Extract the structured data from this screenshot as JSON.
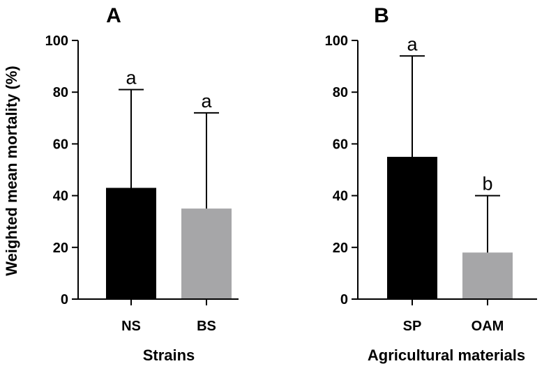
{
  "ylabel": "Weighted mean mortality (%)",
  "chart_data": [
    {
      "type": "bar",
      "panel": "A",
      "categories": [
        "NS",
        "BS"
      ],
      "values": [
        43,
        35
      ],
      "error_upper": [
        81,
        72
      ],
      "significance": [
        "a",
        "a"
      ],
      "colors": [
        "#000000",
        "#a6a6a8"
      ],
      "xlabel": "Strains",
      "ylabel": "Weighted mean mortality (%)",
      "ylim": [
        0,
        100
      ],
      "yticks": [
        0,
        20,
        40,
        60,
        80,
        100
      ],
      "grid": false
    },
    {
      "type": "bar",
      "panel": "B",
      "categories": [
        "SP",
        "OAM"
      ],
      "values": [
        55,
        18
      ],
      "error_upper": [
        94,
        40
      ],
      "significance": [
        "a",
        "b"
      ],
      "colors": [
        "#000000",
        "#a6a6a8"
      ],
      "xlabel": "Agricultural materials",
      "ylabel": "",
      "ylim": [
        0,
        100
      ],
      "yticks": [
        0,
        20,
        40,
        60,
        80,
        100
      ],
      "grid": false
    }
  ]
}
